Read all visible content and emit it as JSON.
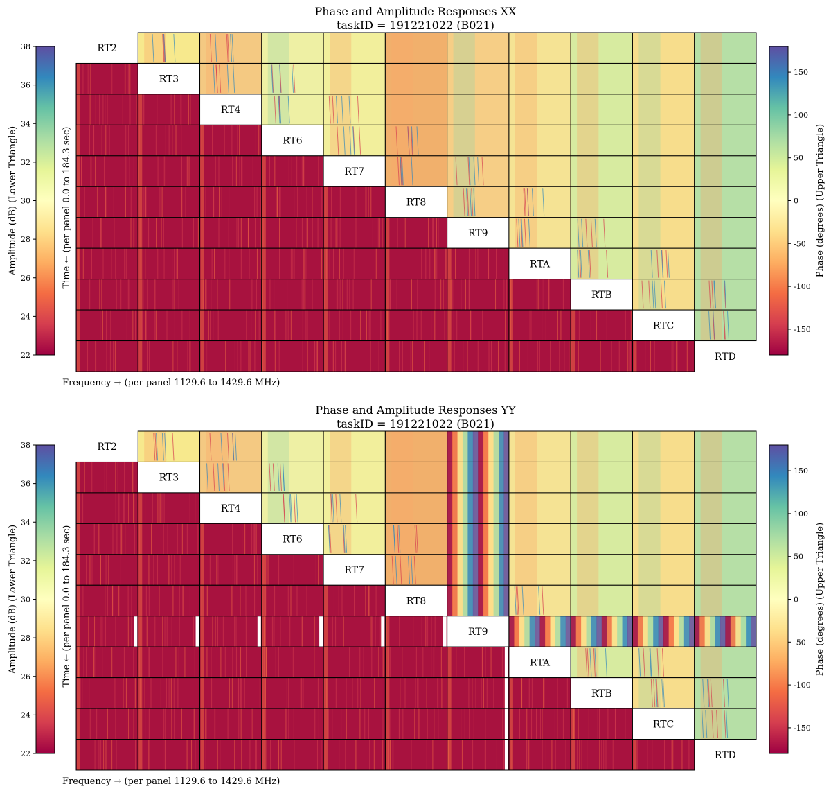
{
  "chart_data": [
    {
      "type": "heatmap",
      "id": "xx",
      "title": "Phase and Amplitude Responses XX",
      "subtitle": "taskID = 191221022 (B021)",
      "antennas": [
        "RT2",
        "RT3",
        "RT4",
        "RT6",
        "RT7",
        "RT8",
        "RT9",
        "RTA",
        "RTB",
        "RTC",
        "RTD"
      ],
      "xlabel": "Frequency → (per panel 1129.6 to 1429.6 MHz)",
      "ylabel_left": "Amplitude (dB) (Lower Triangle)",
      "ylabel_left2": "Time ← (per panel 0.0 to 184.3 sec)",
      "ylabel_right": "Phase (degrees) (Upper Triangle)",
      "amp_range": [
        22,
        38
      ],
      "amp_ticks": [
        22,
        24,
        26,
        28,
        30,
        32,
        34,
        36,
        38
      ],
      "phase_range": [
        -180,
        180
      ],
      "phase_ticks": [
        -150,
        -100,
        -50,
        0,
        50,
        100,
        150
      ],
      "flagged": []
    },
    {
      "type": "heatmap",
      "id": "yy",
      "title": "Phase and Amplitude Responses YY",
      "subtitle": "taskID = 191221022 (B021)",
      "antennas": [
        "RT2",
        "RT3",
        "RT4",
        "RT6",
        "RT7",
        "RT8",
        "RT9",
        "RTA",
        "RTB",
        "RTC",
        "RTD"
      ],
      "xlabel": "Frequency → (per panel 1129.6 to 1429.6 MHz)",
      "ylabel_left": "Amplitude (dB) (Lower Triangle)",
      "ylabel_left2": "Time ← (per panel 0.0 to 184.3 sec)",
      "ylabel_right": "Phase (degrees) (Upper Triangle)",
      "amp_range": [
        22,
        38
      ],
      "amp_ticks": [
        22,
        24,
        26,
        28,
        30,
        32,
        34,
        36,
        38
      ],
      "phase_range": [
        -180,
        180
      ],
      "phase_ticks": [
        -150,
        -100,
        -50,
        0,
        50,
        100,
        150
      ],
      "flagged": [
        "RT9"
      ]
    }
  ],
  "colors": {
    "spectral": [
      "#9e0142",
      "#d53e4f",
      "#f46d43",
      "#fdae61",
      "#fee08b",
      "#ffffbf",
      "#e6f598",
      "#abdda4",
      "#66c2a5",
      "#3288bd",
      "#5e4fa2"
    ],
    "grid_line": "#000000",
    "flag_white": "#ffffff"
  }
}
